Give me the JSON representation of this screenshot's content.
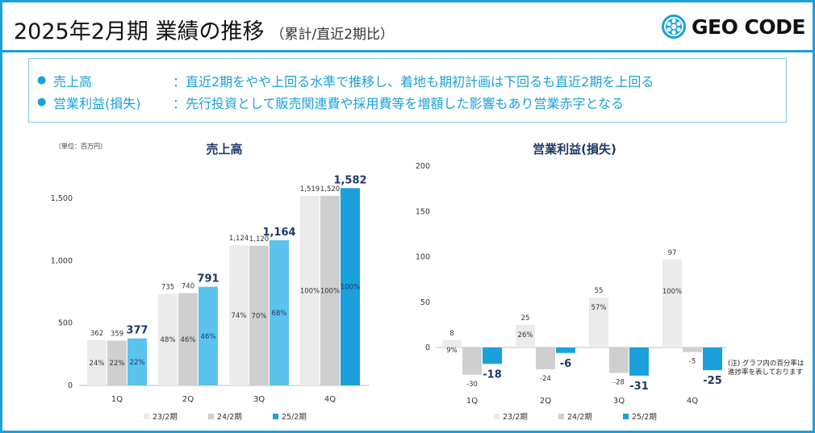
{
  "header": {
    "title": "2025年2月期 業績の推移",
    "subtitle": "（累計/直近2期比）",
    "logo_text": "GEO CODE"
  },
  "summary": {
    "items": [
      {
        "label": "売上高",
        "text": "：直近2期をやや上回る水準で推移し、着地も期初計画は下回るも直近2期を上回る"
      },
      {
        "label": "営業利益(損失)",
        "text": "：先行投資として販売関連費や採用費等を増額した影響もあり営業赤字となる"
      }
    ]
  },
  "footnote": "(注) グラフ内の百分率は進捗率を表しております",
  "colors": {
    "accent": "#1aa0da",
    "series_23": "#ebebeb",
    "series_24": "#cfcfcf",
    "series_25_light": "#5bc3ec",
    "series_25_dark": "#1aa0da",
    "title_text": "#1f3864"
  },
  "chart_data": [
    {
      "type": "bar",
      "title": "売上高",
      "unit_label": "（単位：百万円）",
      "categories": [
        "1Q",
        "2Q",
        "3Q",
        "4Q"
      ],
      "ylim": [
        0,
        1700
      ],
      "yticks": [
        "0",
        "500",
        "1,000",
        "1,500"
      ],
      "ytick_values": [
        0,
        500,
        1000,
        1500
      ],
      "series": [
        {
          "name": "23/2期",
          "values": [
            362,
            735,
            1124,
            1519
          ],
          "value_labels": [
            "362",
            "735",
            "1,124",
            "1,519"
          ],
          "pct_labels": [
            "24%",
            "48%",
            "74%",
            "100%"
          ]
        },
        {
          "name": "24/2期",
          "values": [
            359,
            740,
            1120,
            1520
          ],
          "value_labels": [
            "359",
            "740",
            "1,120",
            "1,520"
          ],
          "pct_labels": [
            "22%",
            "46%",
            "70%",
            "100%"
          ]
        },
        {
          "name": "25/2期",
          "values": [
            377,
            791,
            1164,
            1582
          ],
          "value_labels": [
            "377",
            "791",
            "1,164",
            "1,582"
          ],
          "pct_labels": [
            "22%",
            "46%",
            "68%",
            "100%"
          ]
        }
      ],
      "grid": false,
      "legend": "bottom"
    },
    {
      "type": "bar",
      "title": "営業利益(損失)",
      "categories": [
        "1Q",
        "2Q",
        "3Q",
        "4Q"
      ],
      "ylim": [
        -40,
        200
      ],
      "yticks": [
        "0",
        "50",
        "100",
        "150",
        "200"
      ],
      "ytick_values": [
        0,
        50,
        100,
        150,
        200
      ],
      "series": [
        {
          "name": "23/2期",
          "values": [
            8,
            25,
            55,
            97
          ],
          "value_labels": [
            "8",
            "25",
            "55",
            "97"
          ],
          "pct_labels": [
            "9%",
            "26%",
            "57%",
            "100%"
          ]
        },
        {
          "name": "24/2期",
          "values": [
            -30,
            -24,
            -28,
            -5
          ],
          "value_labels": [
            "-30",
            "-24",
            "-28",
            "-5"
          ],
          "pct_labels": [
            "",
            "",
            "",
            ""
          ]
        },
        {
          "name": "25/2期",
          "values": [
            -18,
            -6,
            -31,
            -25
          ],
          "value_labels": [
            "-18",
            "-6",
            "-31",
            "-25"
          ],
          "pct_labels": [
            "",
            "",
            "",
            ""
          ]
        }
      ],
      "grid": false,
      "legend": "bottom"
    }
  ]
}
